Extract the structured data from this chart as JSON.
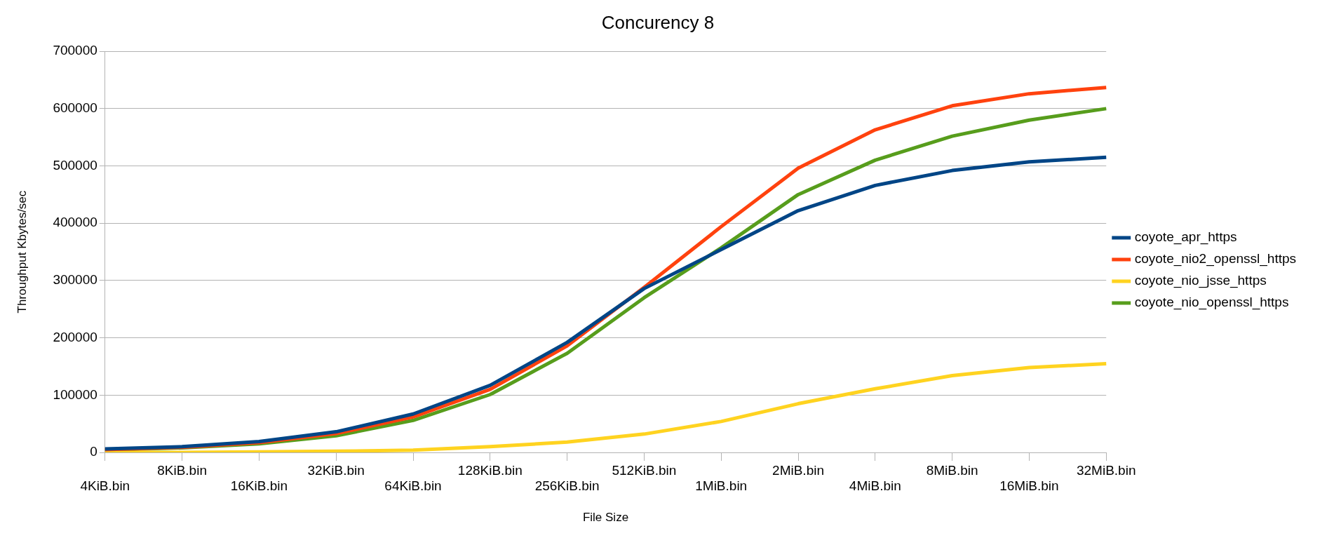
{
  "chart_data": {
    "type": "line",
    "title": "Concurency 8",
    "xlabel": "File Size",
    "ylabel": "Throughput Kbytes/sec",
    "categories": [
      "4KiB.bin",
      "8KiB.bin",
      "16KiB.bin",
      "32KiB.bin",
      "64KiB.bin",
      "128KiB.bin",
      "256KiB.bin",
      "512KiB.bin",
      "1MiB.bin",
      "2MiB.bin",
      "4MiB.bin",
      "8MiB.bin",
      "16MiB.bin",
      "32MiB.bin"
    ],
    "series": [
      {
        "name": "coyote_apr_https",
        "color": "#004586",
        "values": [
          6000,
          10000,
          19000,
          36000,
          67000,
          117000,
          192000,
          286000,
          354000,
          422000,
          466000,
          492000,
          507000,
          515000
        ]
      },
      {
        "name": "coyote_nio2_openssl_https",
        "color": "#ff420e",
        "values": [
          5000,
          9000,
          17000,
          33000,
          62000,
          110000,
          186000,
          288000,
          394000,
          496000,
          563000,
          605000,
          626000,
          637000
        ]
      },
      {
        "name": "coyote_nio_jsse_https",
        "color": "#ffd320",
        "values": [
          0,
          0,
          1000,
          2000,
          4000,
          10000,
          18000,
          32000,
          54000,
          85000,
          111000,
          134000,
          148000,
          155000
        ]
      },
      {
        "name": "coyote_nio_openssl_https",
        "color": "#579d1c",
        "values": [
          4000,
          8000,
          15000,
          29000,
          56000,
          101000,
          173000,
          270000,
          357000,
          450000,
          510000,
          552000,
          580000,
          600000
        ]
      }
    ],
    "ylim": [
      0,
      700000
    ],
    "yticks": [
      0,
      100000,
      200000,
      300000,
      400000,
      500000,
      600000,
      700000
    ],
    "grid": "y",
    "legend": "right",
    "marker": "none",
    "line_style": "solid"
  }
}
